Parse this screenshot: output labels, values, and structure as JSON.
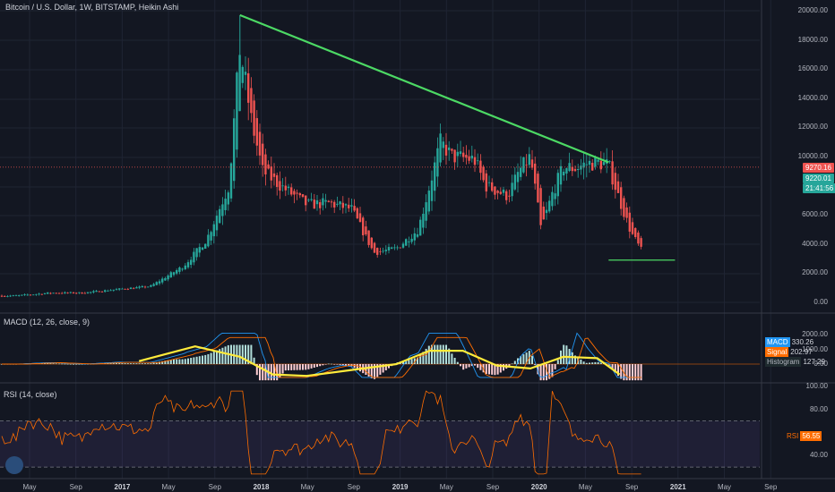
{
  "header": {
    "title": "Bitcoin / U.S. Dollar, 1W, BITSTAMP, Heikin Ashi"
  },
  "price_axis": {
    "ticks": [
      "20000.00",
      "18000.00",
      "16000.00",
      "14000.00",
      "12000.00",
      "10000.00",
      "6000.00",
      "4000.00",
      "2000.00",
      "0.00"
    ],
    "tags": [
      {
        "text": "9270.16",
        "color": "#ef5350"
      },
      {
        "text": "9220.01",
        "color": "#26a69a"
      },
      {
        "text": "21:41:56",
        "color": "#26a69a"
      }
    ]
  },
  "macd_pane": {
    "title": "MACD (12, 26, close, 9)",
    "ticks": [
      "2000.00",
      "1000.00",
      "0.00"
    ],
    "legend": [
      {
        "label": "MACD",
        "value": "330.26",
        "color": "#2196f3"
      },
      {
        "label": "Signal",
        "value": "202.97",
        "color": "#ff6d00"
      },
      {
        "label": "Histogram",
        "value": "127.29",
        "color": "#26a69a"
      }
    ]
  },
  "rsi_pane": {
    "title": "RSI (14, close)",
    "ticks": [
      "100.00",
      "80.00",
      "40.00"
    ],
    "tag": {
      "label": "RSI",
      "value": "56.55",
      "color": "#ff6d00"
    }
  },
  "time_axis": {
    "labels": [
      {
        "text": "May",
        "year": false
      },
      {
        "text": "Sep",
        "year": false
      },
      {
        "text": "2017",
        "year": true
      },
      {
        "text": "May",
        "year": false
      },
      {
        "text": "Sep",
        "year": false
      },
      {
        "text": "2018",
        "year": true
      },
      {
        "text": "May",
        "year": false
      },
      {
        "text": "Sep",
        "year": false
      },
      {
        "text": "2019",
        "year": true
      },
      {
        "text": "May",
        "year": false
      },
      {
        "text": "Sep",
        "year": false
      },
      {
        "text": "2020",
        "year": true
      },
      {
        "text": "May",
        "year": false
      },
      {
        "text": "Sep",
        "year": false
      },
      {
        "text": "2021",
        "year": true
      },
      {
        "text": "May",
        "year": false
      },
      {
        "text": "Sep",
        "year": false
      }
    ]
  },
  "colors": {
    "up": "#26a69a",
    "down": "#ef5350",
    "trendline": "#4cd964",
    "drawing": "#ffeb3b",
    "projection": "#4c8cf0"
  },
  "chart_data": {
    "type": "candlestick",
    "symbol": "BTCUSD",
    "ylim": [
      0,
      20000
    ],
    "close_series": {
      "x": [
        "2016-04",
        "2016-07",
        "2016-10",
        "2017-01",
        "2017-04",
        "2017-07",
        "2017-09",
        "2017-11",
        "2017-12",
        "2018-01",
        "2018-02",
        "2018-04",
        "2018-06",
        "2018-08",
        "2018-10",
        "2018-12",
        "2019-02",
        "2019-04",
        "2019-05",
        "2019-06",
        "2019-07",
        "2019-09",
        "2019-10",
        "2019-12",
        "2020-01",
        "2020-02",
        "2020-03",
        "2020-04",
        "2020-05",
        "2020-06",
        "2020-07",
        "2020-08",
        "2020-09",
        "2020-10",
        "2020-11",
        "2020-12"
      ],
      "values": [
        450,
        650,
        650,
        900,
        1100,
        2500,
        4300,
        8000,
        17500,
        12500,
        9000,
        7800,
        6700,
        6800,
        6400,
        3400,
        3700,
        5000,
        7900,
        11000,
        10000,
        9800,
        8000,
        7300,
        9000,
        10000,
        5000,
        7500,
        9300,
        9200,
        9500,
        9600,
        9400,
        7000,
        4800,
        3500
      ]
    },
    "trendline": {
      "from": {
        "x": "2017-12",
        "y": 19700
      },
      "to": {
        "x": "2020-09",
        "y": 9600
      }
    },
    "support_line": {
      "from": {
        "x": "2020-09",
        "y": 2900
      },
      "to": {
        "x": "2021-03",
        "y": 2900
      }
    },
    "current_price": 9270.16,
    "macd": {
      "macd": 330.26,
      "signal": 202.97,
      "histogram": 127.29,
      "ylim": [
        -1500,
        2500
      ]
    },
    "rsi": {
      "value": 56.55,
      "ylim": [
        20,
        100
      ],
      "bands": [
        70,
        30
      ]
    }
  }
}
